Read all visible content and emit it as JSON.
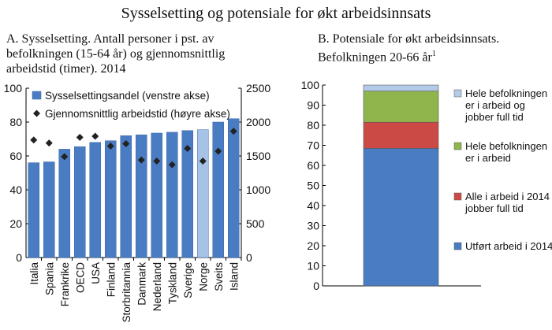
{
  "title": "Sysselsetting og potensiale for økt arbeidsinnsats",
  "chart_data": [
    {
      "type": "bar",
      "panel": "A",
      "subtitle": "A. Sysselsetting. Antall personer i pst. av\nbefolkningen (15-64 år) og gjennomsnittlig\narbeidstid (timer). 2014",
      "categories": [
        "Italia",
        "Spania",
        "Frankrike",
        "OECD",
        "USA",
        "Finland",
        "Storbritannia",
        "Danmark",
        "Nederland",
        "Tyskland",
        "Sverige",
        "Norge",
        "Sveits",
        "Island"
      ],
      "series": [
        {
          "name": "Sysselsettingsandel (venstre akse)",
          "axis": "left",
          "type": "bar",
          "color": "#4a7cc4",
          "highlight_color": "#a6c2e6",
          "highlight_category": "Norge",
          "values": [
            56,
            56.5,
            64,
            65.5,
            68,
            69,
            72,
            72.5,
            73.5,
            74,
            75,
            75.5,
            80,
            82
          ]
        },
        {
          "name": "Gjennomsnittlig arbeidstid (høyre akse)",
          "axis": "right",
          "type": "scatter",
          "marker": "diamond",
          "color": "#222222",
          "values": [
            1735,
            1690,
            1490,
            1775,
            1790,
            1645,
            1680,
            1440,
            1425,
            1370,
            1610,
            1425,
            1570,
            1865
          ]
        }
      ],
      "yaxis_left": {
        "min": 0,
        "max": 100,
        "ticks": [
          0,
          20,
          40,
          60,
          80,
          100
        ]
      },
      "yaxis_right": {
        "min": 0,
        "max": 2500,
        "ticks": [
          0,
          500,
          1000,
          1500,
          2000,
          2500
        ]
      },
      "legend_position": "top-left"
    },
    {
      "type": "bar",
      "stacked": true,
      "panel": "B",
      "subtitle": "B. Potensiale for økt arbeidsinnsats.\nBefolkningen 20-66 år",
      "subtitle_sup": "1",
      "categories": [
        ""
      ],
      "series": [
        {
          "name": "Utført arbeid i 2014",
          "value": 68.5,
          "color": "#4a7cc4"
        },
        {
          "name": "Alle i arbeid i 2014 jobber full tid",
          "value": 13,
          "color": "#cc4a45"
        },
        {
          "name": "Hele befolkningen er i arbeid",
          "value": 15.5,
          "color": "#8fb54c"
        },
        {
          "name": "Hele befolkningen er i arbeid og jobber full tid",
          "value": 3,
          "color": "#b3cbe9"
        }
      ],
      "legend_lines": [
        [
          "Hele befolkningen",
          "er i arbeid og",
          "jobber full tid"
        ],
        [
          "Hele befolkningen",
          "er i arbeid"
        ],
        [
          "Alle i arbeid i 2014",
          "jobber full tid"
        ],
        [
          "Utført arbeid i 2014"
        ]
      ],
      "yaxis": {
        "min": 0,
        "max": 100,
        "ticks": [
          0,
          10,
          20,
          30,
          40,
          50,
          60,
          70,
          80,
          90,
          100
        ]
      },
      "legend_position": "right"
    }
  ]
}
